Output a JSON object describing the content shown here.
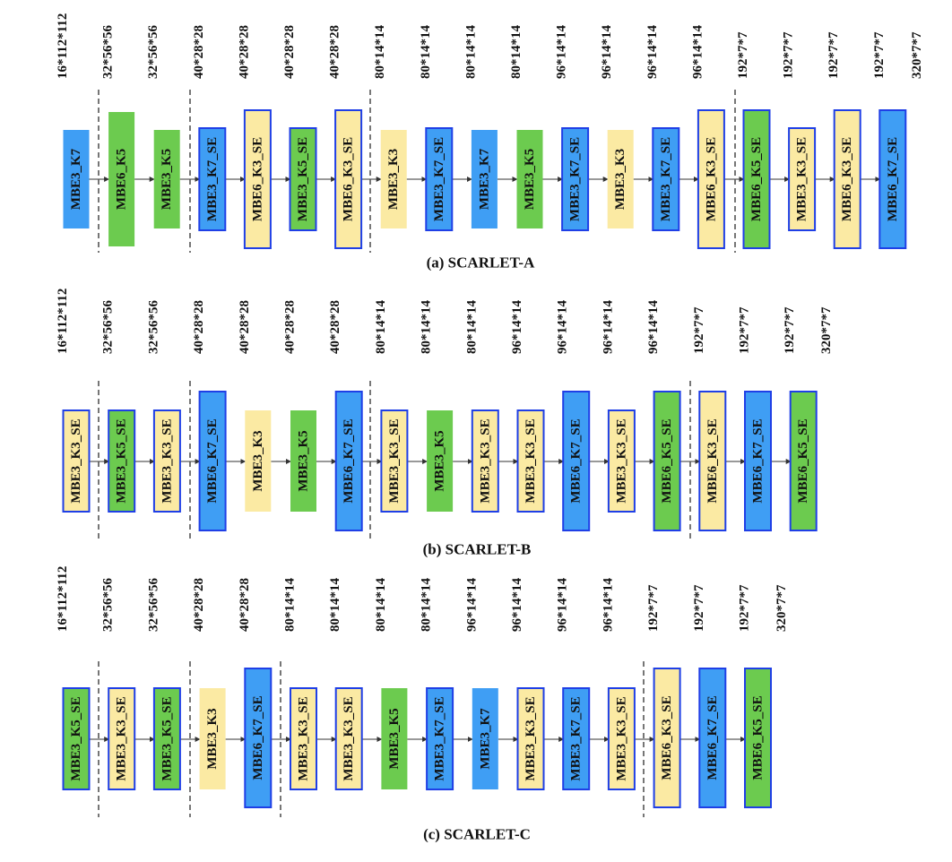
{
  "colors": {
    "k3": "#fbeaa3",
    "k5": "#6ccb4f",
    "k7": "#3f9ef4",
    "se_border": "#1f3fe6",
    "line": "#333333",
    "dash": "#555555"
  },
  "panels": [
    {
      "caption": "(a) SCARLET-A",
      "blocks": [
        {
          "label": "MBE3_K7",
          "dim": "16*112*112",
          "kernel": "k7",
          "se": false
        },
        {
          "label": "MBE6_K5",
          "dim": "32*56*56",
          "kernel": "k5",
          "se": false
        },
        {
          "label": "MBE3_K5",
          "dim": "32*56*56",
          "kernel": "k5",
          "se": false
        },
        {
          "label": "MBE3_K7_SE",
          "dim": "40*28*28",
          "kernel": "k7",
          "se": true
        },
        {
          "label": "MBE6_K3_SE",
          "dim": "40*28*28",
          "kernel": "k3",
          "se": true
        },
        {
          "label": "MBE3_K5_SE",
          "dim": "40*28*28",
          "kernel": "k5",
          "se": true
        },
        {
          "label": "MBE6_K3_SE",
          "dim": "40*28*28",
          "kernel": "k3",
          "se": true
        },
        {
          "label": "MBE3_K3",
          "dim": "80*14*14",
          "kernel": "k3",
          "se": false
        },
        {
          "label": "MBE3_K7_SE",
          "dim": "80*14*14",
          "kernel": "k7",
          "se": true
        },
        {
          "label": "MBE3_K7",
          "dim": "80*14*14",
          "kernel": "k7",
          "se": false
        },
        {
          "label": "MBE3_K5",
          "dim": "80*14*14",
          "kernel": "k5",
          "se": false
        },
        {
          "label": "MBE3_K7_SE",
          "dim": "96*14*14",
          "kernel": "k7",
          "se": true
        },
        {
          "label": "MBE3_K3",
          "dim": "96*14*14",
          "kernel": "k3",
          "se": false
        },
        {
          "label": "MBE3_K7_SE",
          "dim": "96*14*14",
          "kernel": "k7",
          "se": true
        },
        {
          "label": "MBE6_K3_SE",
          "dim": "96*14*14",
          "kernel": "k3",
          "se": true
        },
        {
          "label": "MBE6_K5_SE",
          "dim": "192*7*7",
          "kernel": "k5",
          "se": true
        },
        {
          "label": "MBE3_K3_SE",
          "dim": "192*7*7",
          "kernel": "k3",
          "se": true
        },
        {
          "label": "MBE6_K3_SE",
          "dim": "192*7*7",
          "kernel": "k3",
          "se": true
        },
        {
          "label": "MBE6_K7_SE",
          "dim": "192*7*7",
          "kernel": "k7",
          "se": true
        }
      ],
      "final_dim": "320*7*7"
    },
    {
      "caption": "(b) SCARLET-B",
      "blocks": [
        {
          "label": "MBE3_K3_SE",
          "dim": "16*112*112",
          "kernel": "k3",
          "se": true
        },
        {
          "label": "MBE3_K5_SE",
          "dim": "32*56*56",
          "kernel": "k5",
          "se": true
        },
        {
          "label": "MBE3_K3_SE",
          "dim": "32*56*56",
          "kernel": "k3",
          "se": true
        },
        {
          "label": "MBE6_K7_SE",
          "dim": "40*28*28",
          "kernel": "k7",
          "se": true
        },
        {
          "label": "MBE3_K3",
          "dim": "40*28*28",
          "kernel": "k3",
          "se": false
        },
        {
          "label": "MBE3_K5",
          "dim": "40*28*28",
          "kernel": "k5",
          "se": false
        },
        {
          "label": "MBE6_K7_SE",
          "dim": "40*28*28",
          "kernel": "k7",
          "se": true
        },
        {
          "label": "MBE3_K3_SE",
          "dim": "80*14*14",
          "kernel": "k3",
          "se": true
        },
        {
          "label": "MBE3_K5",
          "dim": "80*14*14",
          "kernel": "k5",
          "se": false
        },
        {
          "label": "MBE3_K3_SE",
          "dim": "80*14*14",
          "kernel": "k3",
          "se": true
        },
        {
          "label": "MBE3_K3_SE",
          "dim": "96*14*14",
          "kernel": "k3",
          "se": true
        },
        {
          "label": "MBE6_K7_SE",
          "dim": "96*14*14",
          "kernel": "k7",
          "se": true
        },
        {
          "label": "MBE3_K3_SE",
          "dim": "96*14*14",
          "kernel": "k3",
          "se": true
        },
        {
          "label": "MBE6_K5_SE",
          "dim": "96*14*14",
          "kernel": "k5",
          "se": true
        },
        {
          "label": "MBE6_K3_SE",
          "dim": "192*7*7",
          "kernel": "k3",
          "se": true
        },
        {
          "label": "MBE6_K7_SE",
          "dim": "192*7*7",
          "kernel": "k7",
          "se": true
        },
        {
          "label": "MBE6_K5_SE",
          "dim": "192*7*7",
          "kernel": "k5",
          "se": true
        }
      ],
      "final_dim": "320*7*7"
    },
    {
      "caption": "(c) SCARLET-C",
      "blocks": [
        {
          "label": "MBE3_K5_SE",
          "dim": "16*112*112",
          "kernel": "k5",
          "se": true
        },
        {
          "label": "MBE3_K3_SE",
          "dim": "32*56*56",
          "kernel": "k3",
          "se": true
        },
        {
          "label": "MBE3_K5_SE",
          "dim": "32*56*56",
          "kernel": "k5",
          "se": true
        },
        {
          "label": "MBE3_K3",
          "dim": "40*28*28",
          "kernel": "k3",
          "se": false
        },
        {
          "label": "MBE6_K7_SE",
          "dim": "40*28*28",
          "kernel": "k7",
          "se": true
        },
        {
          "label": "MBE3_K3_SE",
          "dim": "80*14*14",
          "kernel": "k3",
          "se": true
        },
        {
          "label": "MBE3_K3_SE",
          "dim": "80*14*14",
          "kernel": "k3",
          "se": true
        },
        {
          "label": "MBE3_K5",
          "dim": "80*14*14",
          "kernel": "k5",
          "se": false
        },
        {
          "label": "MBE3_K7_SE",
          "dim": "80*14*14",
          "kernel": "k7",
          "se": true
        },
        {
          "label": "MBE3_K7",
          "dim": "96*14*14",
          "kernel": "k7",
          "se": false
        },
        {
          "label": "MBE3_K3_SE",
          "dim": "96*14*14",
          "kernel": "k3",
          "se": true
        },
        {
          "label": "MBE3_K7_SE",
          "dim": "96*14*14",
          "kernel": "k7",
          "se": true
        },
        {
          "label": "MBE3_K3_SE",
          "dim": "96*14*14",
          "kernel": "k3",
          "se": true
        },
        {
          "label": "MBE6_K3_SE",
          "dim": "192*7*7",
          "kernel": "k3",
          "se": true
        },
        {
          "label": "MBE6_K7_SE",
          "dim": "192*7*7",
          "kernel": "k7",
          "se": true
        },
        {
          "label": "MBE6_K5_SE",
          "dim": "192*7*7",
          "kernel": "k5",
          "se": true
        }
      ],
      "final_dim": "320*7*7"
    }
  ]
}
